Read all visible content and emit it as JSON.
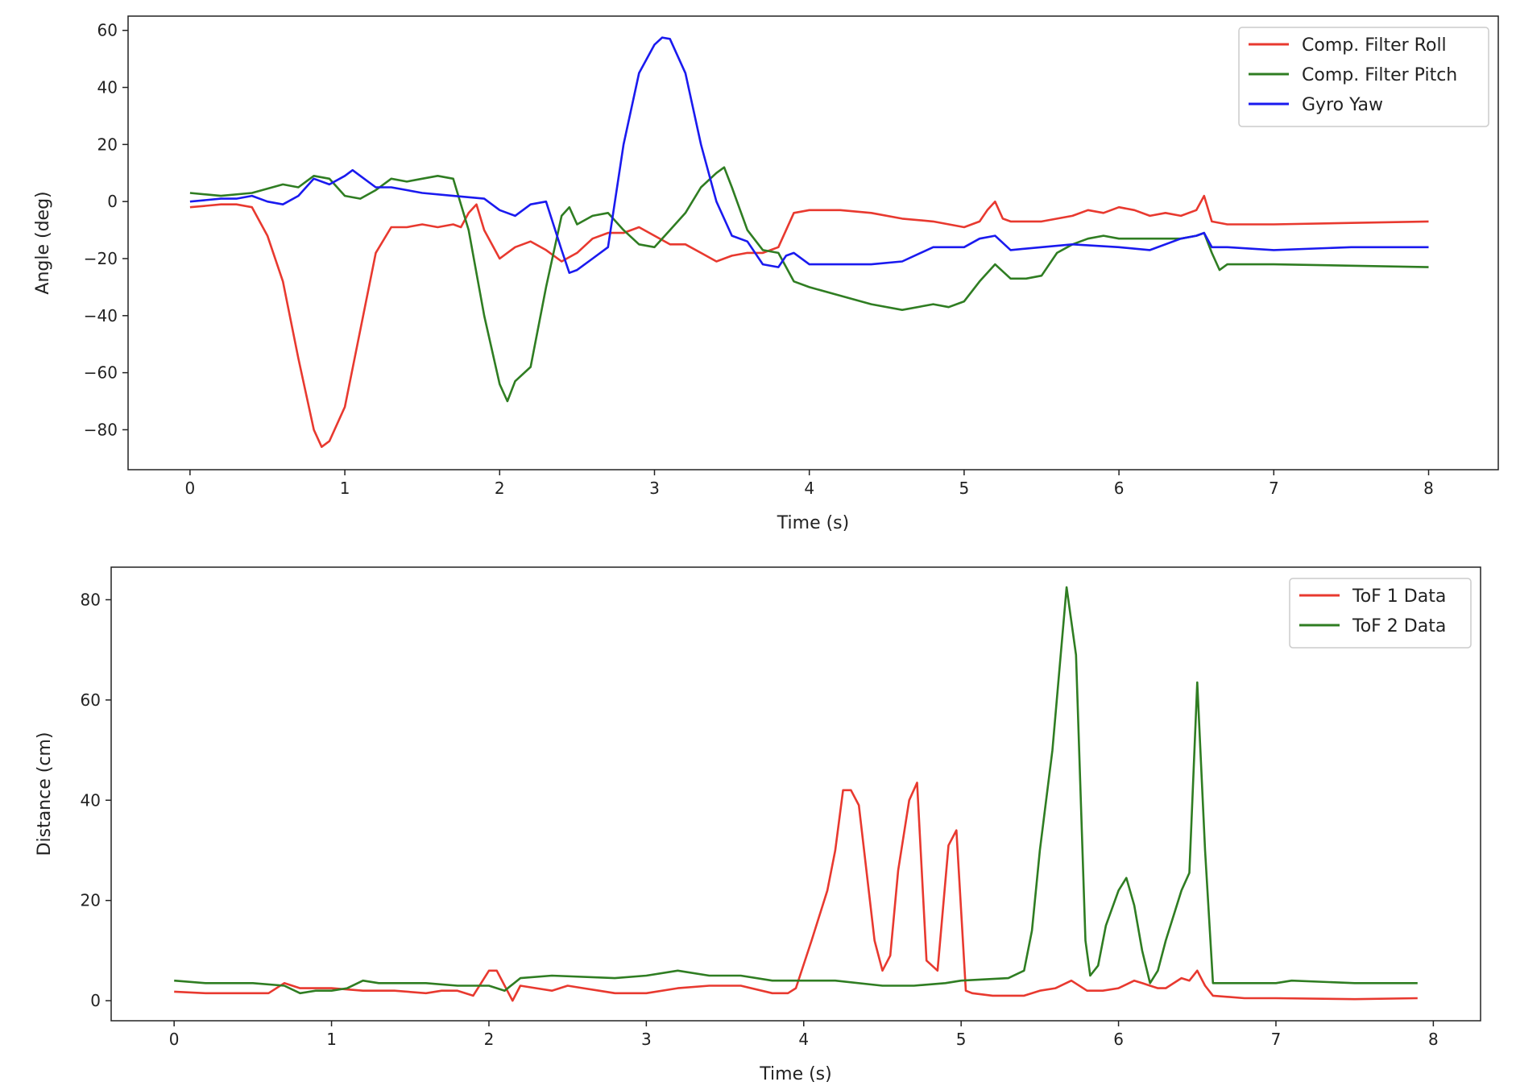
{
  "chart_data": [
    {
      "type": "line",
      "title": "",
      "xlabel": "Time (s)",
      "ylabel": "Angle (deg)",
      "xlim": [
        -0.4,
        8.45
      ],
      "ylim": [
        -94,
        65
      ],
      "xticks": [
        0,
        1,
        2,
        3,
        4,
        5,
        6,
        7,
        8
      ],
      "yticks": [
        -80,
        -60,
        -40,
        -20,
        0,
        20,
        40,
        60
      ],
      "xtick_labels": [
        "0",
        "1",
        "2",
        "3",
        "4",
        "5",
        "6",
        "7",
        "8"
      ],
      "ytick_labels": [
        "−80",
        "−60",
        "−40",
        "−20",
        "0",
        "20",
        "40",
        "60"
      ],
      "legend_position": "top-right",
      "series": [
        {
          "name": "Comp. Filter Roll",
          "color": "#e8392f",
          "x": [
            0,
            0.1,
            0.2,
            0.3,
            0.4,
            0.5,
            0.6,
            0.7,
            0.8,
            0.85,
            0.9,
            1.0,
            1.1,
            1.2,
            1.3,
            1.4,
            1.5,
            1.6,
            1.7,
            1.75,
            1.8,
            1.85,
            1.9,
            2.0,
            2.1,
            2.2,
            2.3,
            2.4,
            2.5,
            2.6,
            2.7,
            2.8,
            2.9,
            3.0,
            3.1,
            3.2,
            3.3,
            3.4,
            3.5,
            3.6,
            3.7,
            3.8,
            3.9,
            4.0,
            4.2,
            4.4,
            4.6,
            4.8,
            5.0,
            5.1,
            5.15,
            5.2,
            5.25,
            5.3,
            5.5,
            5.7,
            5.8,
            5.9,
            6.0,
            6.1,
            6.2,
            6.3,
            6.4,
            6.5,
            6.55,
            6.6,
            6.7,
            7.0,
            7.5,
            8.0
          ],
          "values": [
            -2,
            -1.5,
            -1,
            -1,
            -2,
            -12,
            -28,
            -55,
            -80,
            -86,
            -84,
            -72,
            -45,
            -18,
            -9,
            -9,
            -8,
            -9,
            -8,
            -9,
            -4,
            -1,
            -10,
            -20,
            -16,
            -14,
            -17,
            -21,
            -18,
            -13,
            -11,
            -11,
            -9,
            -12,
            -15,
            -15,
            -18,
            -21,
            -19,
            -18,
            -18,
            -16,
            -4,
            -3,
            -3,
            -4,
            -6,
            -7,
            -9,
            -7,
            -3,
            0,
            -6,
            -7,
            -7,
            -5,
            -3,
            -4,
            -2,
            -3,
            -5,
            -4,
            -5,
            -3,
            2,
            -7,
            -8,
            -8,
            -7.5,
            -7
          ]
        },
        {
          "name": "Comp. Filter Pitch",
          "color": "#2f7d22",
          "x": [
            0,
            0.2,
            0.4,
            0.6,
            0.7,
            0.8,
            0.9,
            1.0,
            1.1,
            1.2,
            1.3,
            1.4,
            1.5,
            1.6,
            1.7,
            1.8,
            1.9,
            2.0,
            2.05,
            2.1,
            2.2,
            2.3,
            2.4,
            2.45,
            2.5,
            2.6,
            2.7,
            2.8,
            2.9,
            3.0,
            3.1,
            3.2,
            3.3,
            3.4,
            3.45,
            3.5,
            3.6,
            3.7,
            3.8,
            3.9,
            4.0,
            4.2,
            4.4,
            4.6,
            4.8,
            4.9,
            5.0,
            5.1,
            5.2,
            5.3,
            5.4,
            5.5,
            5.6,
            5.7,
            5.8,
            5.9,
            6.0,
            6.2,
            6.4,
            6.5,
            6.55,
            6.6,
            6.65,
            6.7,
            7.0,
            7.5,
            8.0
          ],
          "values": [
            3,
            2,
            3,
            6,
            5,
            9,
            8,
            2,
            1,
            4,
            8,
            7,
            8,
            9,
            8,
            -10,
            -40,
            -64,
            -70,
            -63,
            -58,
            -30,
            -5,
            -2,
            -8,
            -5,
            -4,
            -10,
            -15,
            -16,
            -10,
            -4,
            5,
            10,
            12,
            5,
            -10,
            -17,
            -18,
            -28,
            -30,
            -33,
            -36,
            -38,
            -36,
            -37,
            -35,
            -28,
            -22,
            -27,
            -27,
            -26,
            -18,
            -15,
            -13,
            -12,
            -13,
            -13,
            -13,
            -12,
            -11,
            -18,
            -24,
            -22,
            -22,
            -22.5,
            -23
          ]
        },
        {
          "name": "Gyro Yaw",
          "color": "#1a1aef",
          "x": [
            0,
            0.2,
            0.3,
            0.4,
            0.5,
            0.6,
            0.7,
            0.8,
            0.9,
            1.0,
            1.05,
            1.1,
            1.2,
            1.3,
            1.5,
            1.7,
            1.9,
            2.0,
            2.1,
            2.2,
            2.3,
            2.4,
            2.45,
            2.5,
            2.6,
            2.7,
            2.8,
            2.9,
            3.0,
            3.05,
            3.1,
            3.2,
            3.3,
            3.4,
            3.5,
            3.6,
            3.7,
            3.8,
            3.85,
            3.9,
            4.0,
            4.2,
            4.4,
            4.6,
            4.8,
            5.0,
            5.1,
            5.2,
            5.3,
            5.5,
            5.7,
            6.0,
            6.2,
            6.4,
            6.5,
            6.55,
            6.6,
            6.7,
            7.0,
            7.5,
            8.0
          ],
          "values": [
            0,
            1,
            1,
            2,
            0,
            -1,
            2,
            8,
            6,
            9,
            11,
            9,
            5,
            5,
            3,
            2,
            1,
            -3,
            -5,
            -1,
            0,
            -17,
            -25,
            -24,
            -20,
            -16,
            20,
            45,
            55,
            57.5,
            57,
            45,
            20,
            0,
            -12,
            -14,
            -22,
            -23,
            -19,
            -18,
            -22,
            -22,
            -22,
            -21,
            -16,
            -16,
            -13,
            -12,
            -17,
            -16,
            -15,
            -16,
            -17,
            -13,
            -12,
            -11,
            -16,
            -16,
            -17,
            -16,
            -16
          ]
        }
      ]
    },
    {
      "type": "line",
      "title": "",
      "xlabel": "Time (s)",
      "ylabel": "Distance (cm)",
      "xlim": [
        -0.4,
        8.3
      ],
      "ylim": [
        -4,
        86.5
      ],
      "xticks": [
        0,
        1,
        2,
        3,
        4,
        5,
        6,
        7,
        8
      ],
      "yticks": [
        0,
        20,
        40,
        60,
        80
      ],
      "xtick_labels": [
        "0",
        "1",
        "2",
        "3",
        "4",
        "5",
        "6",
        "7",
        "8"
      ],
      "ytick_labels": [
        "0",
        "20",
        "40",
        "60",
        "80"
      ],
      "legend_position": "top-right",
      "series": [
        {
          "name": "ToF 1 Data",
          "color": "#e8392f",
          "x": [
            0,
            0.2,
            0.4,
            0.6,
            0.7,
            0.8,
            0.9,
            1.0,
            1.2,
            1.4,
            1.6,
            1.7,
            1.8,
            1.9,
            2.0,
            2.05,
            2.1,
            2.15,
            2.2,
            2.3,
            2.4,
            2.5,
            2.6,
            2.7,
            2.8,
            3.0,
            3.2,
            3.4,
            3.6,
            3.8,
            3.9,
            3.95,
            4.05,
            4.15,
            4.2,
            4.25,
            4.3,
            4.35,
            4.45,
            4.5,
            4.55,
            4.6,
            4.67,
            4.72,
            4.78,
            4.85,
            4.92,
            4.97,
            5.03,
            5.07,
            5.2,
            5.4,
            5.5,
            5.6,
            5.7,
            5.8,
            5.9,
            6.0,
            6.1,
            6.15,
            6.2,
            6.25,
            6.3,
            6.4,
            6.45,
            6.5,
            6.55,
            6.6,
            6.8,
            7.0,
            7.5,
            7.9
          ],
          "values": [
            1.8,
            1.5,
            1.5,
            1.5,
            3.5,
            2.5,
            2.5,
            2.5,
            2,
            2,
            1.5,
            2,
            2,
            1,
            6,
            6,
            3,
            0,
            3,
            2.5,
            2,
            3,
            2.5,
            2,
            1.5,
            1.5,
            2.5,
            3,
            3,
            1.5,
            1.5,
            2.5,
            12,
            22,
            30,
            42,
            42,
            39,
            12,
            6,
            9,
            26,
            40,
            43.5,
            8,
            6,
            31,
            34,
            2,
            1.5,
            1,
            1,
            2,
            2.5,
            4,
            2,
            2,
            2.5,
            4,
            3.5,
            3,
            2.5,
            2.5,
            4.5,
            4,
            6,
            3,
            1,
            0.5,
            0.5,
            0.3,
            0.5
          ]
        },
        {
          "name": "ToF 2 Data",
          "color": "#2f7d22",
          "x": [
            0,
            0.2,
            0.5,
            0.7,
            0.8,
            0.9,
            1.0,
            1.1,
            1.2,
            1.3,
            1.6,
            1.8,
            2.0,
            2.1,
            2.2,
            2.4,
            2.8,
            3.0,
            3.2,
            3.4,
            3.6,
            3.8,
            4.0,
            4.2,
            4.5,
            4.7,
            4.9,
            5.0,
            5.3,
            5.4,
            5.45,
            5.5,
            5.58,
            5.67,
            5.73,
            5.79,
            5.82,
            5.87,
            5.92,
            6.0,
            6.05,
            6.1,
            6.15,
            6.2,
            6.25,
            6.3,
            6.4,
            6.45,
            6.5,
            6.55,
            6.6,
            6.8,
            7.0,
            7.1,
            7.5,
            7.9
          ],
          "values": [
            4,
            3.5,
            3.5,
            3,
            1.5,
            2,
            2,
            2.5,
            4,
            3.5,
            3.5,
            3,
            3,
            2,
            4.5,
            5,
            4.5,
            5,
            6,
            5,
            5,
            4,
            4,
            4,
            3,
            3,
            3.5,
            4,
            4.5,
            6,
            14,
            30,
            50,
            82.5,
            69,
            12,
            5,
            7,
            15,
            22,
            24.5,
            19,
            10,
            3.5,
            6,
            12,
            22,
            25.5,
            63.5,
            30,
            3.5,
            3.5,
            3.5,
            4,
            3.5,
            3.5
          ]
        }
      ]
    }
  ]
}
